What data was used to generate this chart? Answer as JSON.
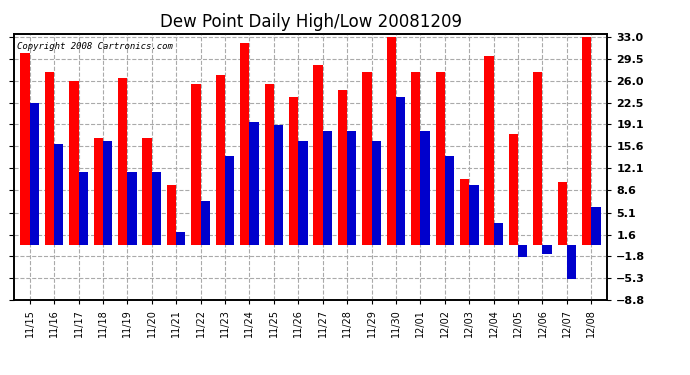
{
  "title": "Dew Point Daily High/Low 20081209",
  "copyright": "Copyright 2008 Cartronics.com",
  "dates": [
    "11/15",
    "11/16",
    "11/17",
    "11/18",
    "11/19",
    "11/20",
    "11/21",
    "11/22",
    "11/23",
    "11/24",
    "11/25",
    "11/26",
    "11/27",
    "11/28",
    "11/29",
    "11/30",
    "12/01",
    "12/02",
    "12/03",
    "12/04",
    "12/05",
    "12/06",
    "12/07",
    "12/08"
  ],
  "highs": [
    30.5,
    27.5,
    26.0,
    17.0,
    26.5,
    17.0,
    9.5,
    25.5,
    27.0,
    32.0,
    25.5,
    23.5,
    28.5,
    24.5,
    27.5,
    33.0,
    27.5,
    27.5,
    10.5,
    30.0,
    17.5,
    27.5,
    10.0,
    33.0
  ],
  "lows": [
    22.5,
    16.0,
    11.5,
    16.5,
    11.5,
    11.5,
    2.0,
    7.0,
    14.0,
    19.5,
    19.0,
    16.5,
    18.0,
    18.0,
    16.5,
    23.5,
    18.0,
    14.0,
    9.5,
    3.5,
    -2.0,
    -1.5,
    -5.5,
    6.0
  ],
  "high_color": "#ff0000",
  "low_color": "#0000cc",
  "bg_color": "#ffffff",
  "grid_color": "#aaaaaa",
  "yticks": [
    33.0,
    29.5,
    26.0,
    22.5,
    19.1,
    15.6,
    12.1,
    8.6,
    5.1,
    1.6,
    -1.8,
    -5.3,
    -8.8
  ],
  "ymin": -8.8,
  "ymax": 33.5,
  "title_fontsize": 12,
  "tick_fontsize": 8,
  "xlabel_fontsize": 7,
  "bar_width": 0.38
}
